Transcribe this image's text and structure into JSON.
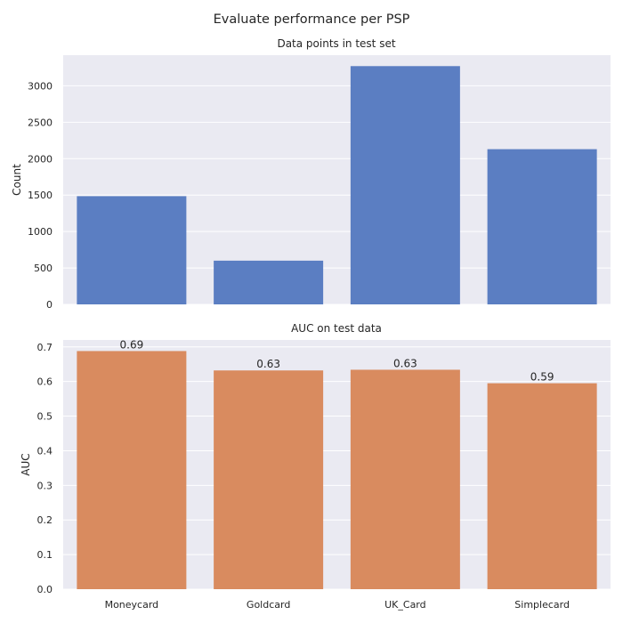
{
  "figure": {
    "title": "Evaluate performance per PSP",
    "background": "#ffffff",
    "axes_background": "#eaeaf2",
    "grid_color": "#ffffff"
  },
  "chart_data": [
    {
      "type": "bar",
      "title": "Data points in test set",
      "xlabel": "",
      "ylabel": "Count",
      "categories": [
        "Moneycard",
        "Goldcard",
        "UK_Card",
        "Simplecard"
      ],
      "values": [
        1485,
        600,
        3270,
        2130
      ],
      "ylim": [
        0,
        3420
      ],
      "yticks": [
        0,
        500,
        1000,
        1500,
        2000,
        2500,
        3000
      ],
      "ytick_labels": [
        "0",
        "500",
        "1000",
        "1500",
        "2000",
        "2500",
        "3000"
      ],
      "show_xtick_labels": false,
      "bar_labels": [],
      "grid": true,
      "color": "#5b7ec2"
    },
    {
      "type": "bar",
      "title": "AUC on test data",
      "xlabel": "",
      "ylabel": "AUC",
      "categories": [
        "Moneycard",
        "Goldcard",
        "UK_Card",
        "Simplecard"
      ],
      "values": [
        0.688,
        0.632,
        0.634,
        0.595
      ],
      "ylim": [
        0,
        0.72
      ],
      "yticks": [
        0,
        0.1,
        0.2,
        0.3,
        0.4,
        0.5,
        0.6,
        0.7
      ],
      "ytick_labels": [
        "0.0",
        "0.1",
        "0.2",
        "0.3",
        "0.4",
        "0.5",
        "0.6",
        "0.7"
      ],
      "show_xtick_labels": true,
      "bar_labels": [
        "0.69",
        "0.63",
        "0.63",
        "0.59"
      ],
      "grid": true,
      "color": "#d98b5f"
    }
  ]
}
